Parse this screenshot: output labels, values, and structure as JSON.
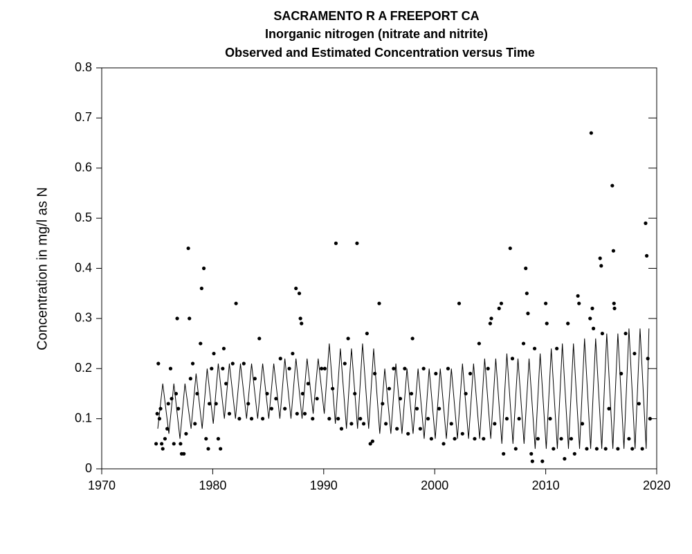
{
  "chart_data": {
    "type": "scatter",
    "title": "SACRAMENTO R A FREEPORT CA",
    "subtitle": "Inorganic nitrogen (nitrate and nitrite)",
    "subtitle2": "Observed and Estimated Concentration versus Time",
    "y_label": "Concentration in mg/l as N",
    "xlim": [
      1970,
      2020
    ],
    "xticks": [
      1970,
      1980,
      1990,
      2000,
      2010,
      2020
    ],
    "ylim": [
      0,
      0.8
    ],
    "yticks": [
      0,
      0.1,
      0.2,
      0.3,
      0.4,
      0.5,
      0.6,
      0.7,
      0.8
    ],
    "series": [
      {
        "type": "scatter",
        "color": "#000000",
        "x": [
          1974.9,
          1975.0,
          1975.1,
          1975.2,
          1975.3,
          1975.4,
          1975.5,
          1975.7,
          1975.9,
          1976.0,
          1976.2,
          1976.3,
          1976.5,
          1976.7,
          1976.8,
          1976.9,
          1977.1,
          1977.2,
          1977.4,
          1977.6,
          1977.8,
          1977.9,
          1978.0,
          1978.2,
          1978.4,
          1978.6,
          1978.9,
          1979.0,
          1979.2,
          1979.4,
          1979.6,
          1979.7,
          1979.9,
          1980.1,
          1980.3,
          1980.5,
          1980.7,
          1980.9,
          1981.0,
          1981.2,
          1981.5,
          1981.8,
          1982.1,
          1982.4,
          1982.8,
          1983.2,
          1983.5,
          1983.8,
          1984.2,
          1984.5,
          1984.9,
          1985.3,
          1985.7,
          1986.1,
          1986.5,
          1986.9,
          1987.2,
          1987.5,
          1987.6,
          1987.8,
          1987.9,
          1988.0,
          1988.1,
          1988.3,
          1988.6,
          1989.0,
          1989.4,
          1989.8,
          1990.1,
          1990.5,
          1990.8,
          1991.1,
          1991.3,
          1991.6,
          1991.9,
          1992.2,
          1992.5,
          1992.8,
          1993.0,
          1993.3,
          1993.6,
          1993.9,
          1994.2,
          1994.4,
          1994.6,
          1995.0,
          1995.3,
          1995.6,
          1995.9,
          1996.3,
          1996.6,
          1996.9,
          1997.3,
          1997.6,
          1997.9,
          1998.0,
          1998.4,
          1998.7,
          1999.0,
          1999.4,
          1999.7,
          2000.1,
          2000.4,
          2000.8,
          2001.2,
          2001.5,
          2001.8,
          2002.2,
          2002.5,
          2002.8,
          2003.2,
          2003.6,
          2004.0,
          2004.4,
          2004.8,
          2005.0,
          2005.1,
          2005.4,
          2005.8,
          2006.0,
          2006.2,
          2006.5,
          2006.8,
          2007.0,
          2007.3,
          2007.6,
          2008.0,
          2008.2,
          2008.3,
          2008.4,
          2008.7,
          2008.8,
          2009.0,
          2009.3,
          2009.7,
          2010.0,
          2010.1,
          2010.4,
          2010.7,
          2011.0,
          2011.4,
          2011.7,
          2012.0,
          2012.3,
          2012.6,
          2012.9,
          2013.0,
          2013.3,
          2013.7,
          2014.0,
          2014.1,
          2014.2,
          2014.3,
          2014.6,
          2014.9,
          2015.0,
          2015.1,
          2015.4,
          2015.7,
          2016.0,
          2016.1,
          2016.15,
          2016.2,
          2016.5,
          2016.8,
          2017.2,
          2017.5,
          2017.8,
          2018.0,
          2018.4,
          2018.7,
          2019.0,
          2019.1,
          2019.2,
          2019.4
        ],
        "values": [
          0.05,
          0.11,
          0.21,
          0.1,
          0.12,
          0.05,
          0.04,
          0.06,
          0.08,
          0.13,
          0.2,
          0.14,
          0.05,
          0.15,
          0.3,
          0.12,
          0.05,
          0.03,
          0.03,
          0.07,
          0.44,
          0.3,
          0.18,
          0.21,
          0.09,
          0.15,
          0.25,
          0.36,
          0.4,
          0.06,
          0.04,
          0.13,
          0.2,
          0.23,
          0.13,
          0.06,
          0.04,
          0.2,
          0.24,
          0.17,
          0.11,
          0.21,
          0.33,
          0.1,
          0.21,
          0.13,
          0.1,
          0.18,
          0.26,
          0.1,
          0.15,
          0.12,
          0.14,
          0.22,
          0.12,
          0.2,
          0.23,
          0.36,
          0.11,
          0.35,
          0.3,
          0.29,
          0.15,
          0.11,
          0.17,
          0.1,
          0.14,
          0.2,
          0.2,
          0.1,
          0.16,
          0.45,
          0.1,
          0.08,
          0.21,
          0.26,
          0.09,
          0.15,
          0.45,
          0.1,
          0.09,
          0.27,
          0.05,
          0.055,
          0.19,
          0.33,
          0.13,
          0.09,
          0.16,
          0.2,
          0.08,
          0.14,
          0.2,
          0.07,
          0.15,
          0.26,
          0.12,
          0.08,
          0.2,
          0.1,
          0.06,
          0.19,
          0.12,
          0.05,
          0.2,
          0.09,
          0.06,
          0.33,
          0.07,
          0.15,
          0.19,
          0.06,
          0.25,
          0.06,
          0.2,
          0.29,
          0.3,
          0.09,
          0.32,
          0.33,
          0.03,
          0.1,
          0.44,
          0.22,
          0.04,
          0.1,
          0.25,
          0.4,
          0.35,
          0.31,
          0.03,
          0.015,
          0.24,
          0.06,
          0.015,
          0.33,
          0.29,
          0.1,
          0.04,
          0.24,
          0.06,
          0.02,
          0.29,
          0.06,
          0.03,
          0.345,
          0.33,
          0.09,
          0.04,
          0.3,
          0.67,
          0.32,
          0.28,
          0.04,
          0.42,
          0.405,
          0.27,
          0.04,
          0.12,
          0.565,
          0.435,
          0.33,
          0.32,
          0.04,
          0.19,
          0.27,
          0.06,
          0.04,
          0.23,
          0.13,
          0.04,
          0.49,
          0.425,
          0.22,
          0.1
        ]
      },
      {
        "type": "line",
        "color": "#000000",
        "x": [
          1975.05,
          1975.5,
          1976.05,
          1976.5,
          1977.05,
          1977.5,
          1978.05,
          1978.5,
          1979.05,
          1979.5,
          1980.05,
          1980.5,
          1981.05,
          1981.5,
          1982.05,
          1982.5,
          1983.05,
          1983.5,
          1984.05,
          1984.5,
          1985.05,
          1985.5,
          1986.05,
          1986.5,
          1987.05,
          1987.5,
          1988.05,
          1988.5,
          1989.05,
          1989.5,
          1990.05,
          1990.5,
          1991.05,
          1991.5,
          1992.05,
          1992.5,
          1993.05,
          1993.5,
          1994.05,
          1994.5,
          1995.05,
          1995.5,
          1996.05,
          1996.5,
          1997.05,
          1997.5,
          1998.05,
          1998.5,
          1999.05,
          1999.5,
          2000.05,
          2000.5,
          2001.05,
          2001.5,
          2002.05,
          2002.5,
          2003.05,
          2003.5,
          2004.05,
          2004.5,
          2005.05,
          2005.5,
          2006.05,
          2006.5,
          2007.05,
          2007.5,
          2008.05,
          2008.5,
          2009.05,
          2009.5,
          2010.05,
          2010.5,
          2011.05,
          2011.5,
          2012.05,
          2012.5,
          2013.05,
          2013.5,
          2014.05,
          2014.5,
          2015.05,
          2015.5,
          2016.05,
          2016.5,
          2017.05,
          2017.5,
          2018.05,
          2018.5,
          2019.05,
          2019.3
        ],
        "values": [
          0.08,
          0.17,
          0.07,
          0.17,
          0.06,
          0.17,
          0.08,
          0.19,
          0.08,
          0.2,
          0.09,
          0.21,
          0.1,
          0.21,
          0.1,
          0.21,
          0.1,
          0.21,
          0.1,
          0.21,
          0.1,
          0.21,
          0.1,
          0.22,
          0.1,
          0.22,
          0.1,
          0.22,
          0.11,
          0.22,
          0.11,
          0.25,
          0.09,
          0.24,
          0.08,
          0.24,
          0.08,
          0.25,
          0.08,
          0.24,
          0.07,
          0.2,
          0.07,
          0.21,
          0.07,
          0.2,
          0.07,
          0.2,
          0.06,
          0.2,
          0.06,
          0.2,
          0.06,
          0.2,
          0.06,
          0.21,
          0.06,
          0.21,
          0.06,
          0.22,
          0.06,
          0.22,
          0.05,
          0.23,
          0.05,
          0.22,
          0.05,
          0.22,
          0.04,
          0.23,
          0.04,
          0.24,
          0.04,
          0.25,
          0.04,
          0.25,
          0.04,
          0.26,
          0.04,
          0.26,
          0.04,
          0.27,
          0.04,
          0.27,
          0.04,
          0.28,
          0.04,
          0.28,
          0.04,
          0.28
        ]
      }
    ]
  }
}
